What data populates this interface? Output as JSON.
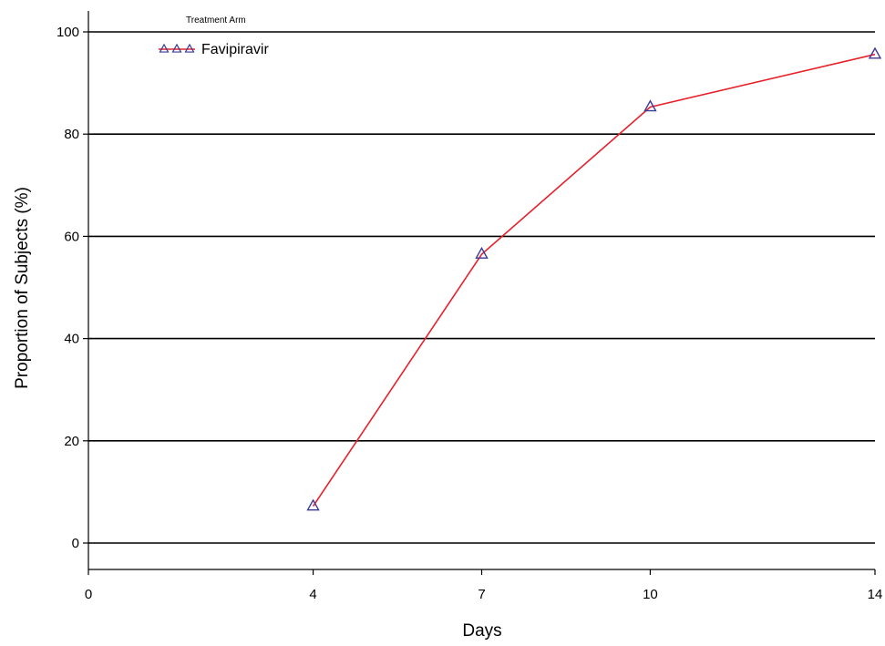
{
  "chart_data": {
    "type": "line",
    "title": "",
    "xlabel": "Days",
    "ylabel": "Proportion of Subjects (%)",
    "xlim": [
      0,
      14
    ],
    "ylim": [
      0,
      100
    ],
    "x_ticks": [
      0,
      4,
      7,
      10,
      14
    ],
    "y_ticks": [
      0,
      20,
      40,
      60,
      80,
      100
    ],
    "grid": "horizontal",
    "legend": {
      "title": "Treatment Arm",
      "placement": "top-left"
    },
    "series": [
      {
        "name": "Favipiravir",
        "line_color": "#e8202a",
        "marker": "triangle",
        "marker_color": "#3a3a9a",
        "x": [
          4,
          7,
          10,
          14
        ],
        "y": [
          7.2,
          56.5,
          85.3,
          95.6
        ]
      }
    ]
  }
}
